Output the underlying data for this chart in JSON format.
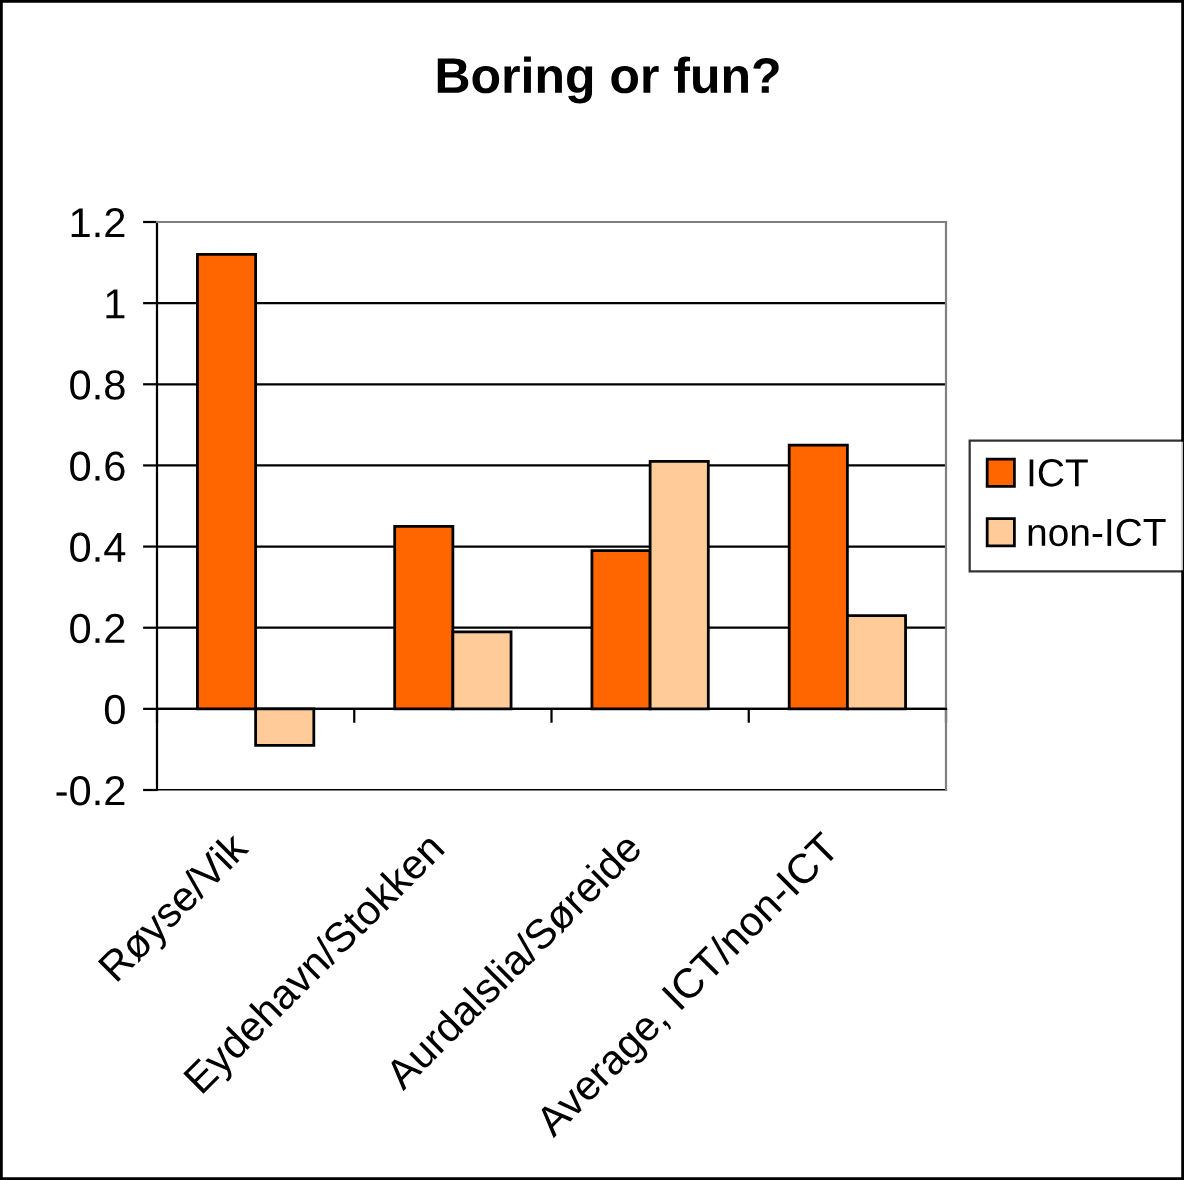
{
  "chart_data": {
    "type": "bar",
    "title": "Boring or fun?",
    "categories": [
      "Røyse/Vik",
      "Eydehavn/Stokken",
      "Aurdalslia/Søreide",
      "Average, ICT/non-ICT"
    ],
    "series": [
      {
        "name": "ICT",
        "color": "#ff6600",
        "values": [
          1.12,
          0.45,
          0.39,
          0.65
        ]
      },
      {
        "name": "non-ICT",
        "color": "#ffcc99",
        "values": [
          -0.09,
          0.19,
          0.61,
          0.23
        ]
      }
    ],
    "ylim": [
      -0.2,
      1.2
    ],
    "yticks": [
      -0.2,
      0,
      0.2,
      0.4,
      0.6,
      0.8,
      1,
      1.2
    ],
    "grid": "y",
    "legend": "right"
  }
}
